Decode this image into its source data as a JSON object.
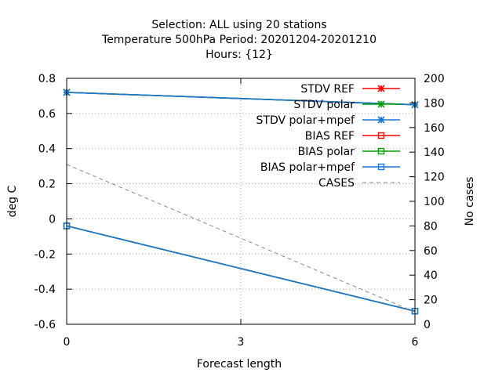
{
  "chart_data": {
    "type": "line",
    "title_lines": [
      "Selection: ALL using    20 stations",
      "Temperature 500hPa   Period: 20201204-20201210",
      "Hours: {12}"
    ],
    "xlabel": "Forecast length",
    "ylabel": "deg C",
    "y2label": "No cases",
    "x": [
      0,
      6
    ],
    "xticks": [
      "0",
      "3",
      "6"
    ],
    "xlim": [
      0,
      6
    ],
    "ylim": [
      -0.6,
      0.8
    ],
    "yticks": [
      "-0.6",
      "-0.4",
      "-0.2",
      "0",
      "0.2",
      "0.4",
      "0.6",
      "0.8"
    ],
    "y2lim": [
      0,
      200
    ],
    "y2ticks": [
      "0",
      "20",
      "40",
      "60",
      "80",
      "100",
      "120",
      "140",
      "160",
      "180",
      "200"
    ],
    "legend_position": "top-right",
    "grid": true,
    "series": [
      {
        "name": "STDV REF",
        "axis": "y",
        "values": [
          0.72,
          0.65
        ],
        "color": "#ff0000",
        "marker": "star",
        "dash": false
      },
      {
        "name": "STDV polar",
        "axis": "y",
        "values": [
          0.72,
          0.65
        ],
        "color": "#00a000",
        "marker": "star",
        "dash": false
      },
      {
        "name": "STDV polar+mpef",
        "axis": "y",
        "values": [
          0.72,
          0.65
        ],
        "color": "#1577d6",
        "marker": "star",
        "dash": false
      },
      {
        "name": "BIAS REF",
        "axis": "y",
        "values": [
          -0.04,
          -0.525
        ],
        "color": "#ff0000",
        "marker": "square",
        "dash": false
      },
      {
        "name": "BIAS polar",
        "axis": "y",
        "values": [
          -0.04,
          -0.525
        ],
        "color": "#00a000",
        "marker": "square",
        "dash": false
      },
      {
        "name": "BIAS polar+mpef",
        "axis": "y",
        "values": [
          -0.04,
          -0.525
        ],
        "color": "#1577d6",
        "marker": "square",
        "dash": false
      },
      {
        "name": "CASES",
        "axis": "y2",
        "values": [
          130,
          10
        ],
        "color": "#888888",
        "marker": "none",
        "dash": true
      }
    ]
  }
}
